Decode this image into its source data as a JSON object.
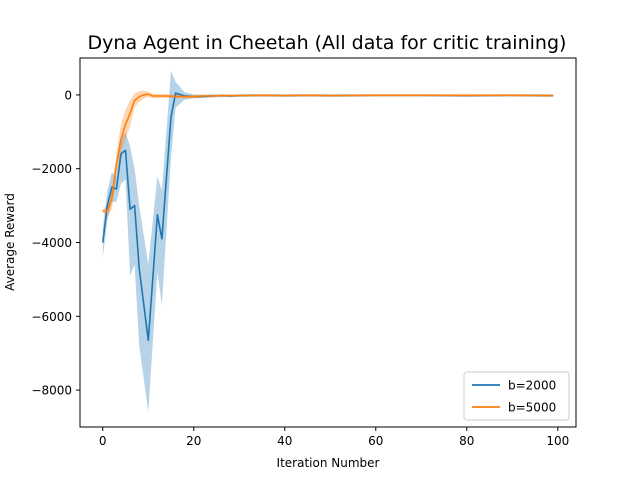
{
  "chart_data": {
    "type": "line",
    "title": "Dyna Agent in Cheetah (All data for critic training)",
    "xlabel": "Iteration Number",
    "ylabel": "Average Reward",
    "xlim": [
      -5,
      104
    ],
    "ylim": [
      -9000,
      1000
    ],
    "xticks": [
      0,
      20,
      40,
      60,
      80,
      100
    ],
    "yticks": [
      -8000,
      -6000,
      -4000,
      -2000,
      0
    ],
    "legend_position": "lower right",
    "grid": false,
    "series": [
      {
        "name": "b=2000",
        "color": "#1f77b4",
        "x": [
          0,
          1,
          2,
          3,
          4,
          5,
          6,
          7,
          8,
          10,
          12,
          13,
          15,
          16,
          18,
          20,
          22,
          24,
          26,
          28,
          30,
          35,
          40,
          45,
          50,
          60,
          70,
          80,
          90,
          99
        ],
        "y": [
          -4000,
          -3000,
          -2500,
          -2550,
          -1600,
          -1500,
          -3100,
          -3000,
          -4700,
          -6650,
          -3250,
          -3900,
          -600,
          50,
          -30,
          -50,
          -40,
          -30,
          -20,
          -30,
          -20,
          -10,
          -20,
          -10,
          -20,
          -10,
          -10,
          -20,
          -10,
          -20
        ],
        "lower": [
          -4400,
          -3400,
          -2900,
          -2900,
          -2400,
          -2300,
          -4900,
          -4600,
          -6800,
          -8600,
          -4800,
          -5700,
          -1700,
          -350,
          -130,
          -90,
          -80,
          -70,
          -60,
          -60,
          -50,
          -40,
          -50,
          -40,
          -50,
          -40,
          -40,
          -50,
          -40,
          -50
        ],
        "upper": [
          -3600,
          -2600,
          -2100,
          -2200,
          -1200,
          -1000,
          -1400,
          -2000,
          -3000,
          -4600,
          -2200,
          -2600,
          650,
          350,
          70,
          10,
          0,
          10,
          10,
          0,
          10,
          20,
          10,
          20,
          10,
          20,
          20,
          10,
          20,
          10
        ]
      },
      {
        "name": "b=5000",
        "color": "#ff7f0e",
        "x": [
          0,
          1,
          2,
          3,
          4,
          5,
          6,
          7,
          8,
          9,
          10,
          11,
          12,
          14,
          16,
          18,
          20,
          22,
          24,
          26,
          28,
          30,
          35,
          40,
          45,
          50,
          60,
          70,
          80,
          90,
          99
        ],
        "y": [
          -3150,
          -3150,
          -2800,
          -1900,
          -1200,
          -800,
          -500,
          -150,
          -50,
          0,
          20,
          -30,
          -30,
          -30,
          -40,
          -50,
          -50,
          -30,
          -30,
          -20,
          -20,
          -20,
          -10,
          -20,
          -10,
          -20,
          -10,
          -10,
          -10,
          -10,
          -20
        ],
        "lower": [
          -3200,
          -3300,
          -3100,
          -2200,
          -1600,
          -1200,
          -850,
          -350,
          -200,
          -100,
          -50,
          -90,
          -90,
          -80,
          -90,
          -90,
          -90,
          -70,
          -60,
          -50,
          -50,
          -50,
          -40,
          -50,
          -40,
          -50,
          -40,
          -40,
          -40,
          -40,
          -50
        ],
        "upper": [
          -3100,
          -3000,
          -2500,
          -1600,
          -800,
          -400,
          -150,
          50,
          100,
          120,
          90,
          30,
          30,
          20,
          10,
          0,
          0,
          10,
          0,
          10,
          10,
          10,
          20,
          10,
          20,
          10,
          20,
          20,
          20,
          20,
          10
        ]
      }
    ]
  }
}
